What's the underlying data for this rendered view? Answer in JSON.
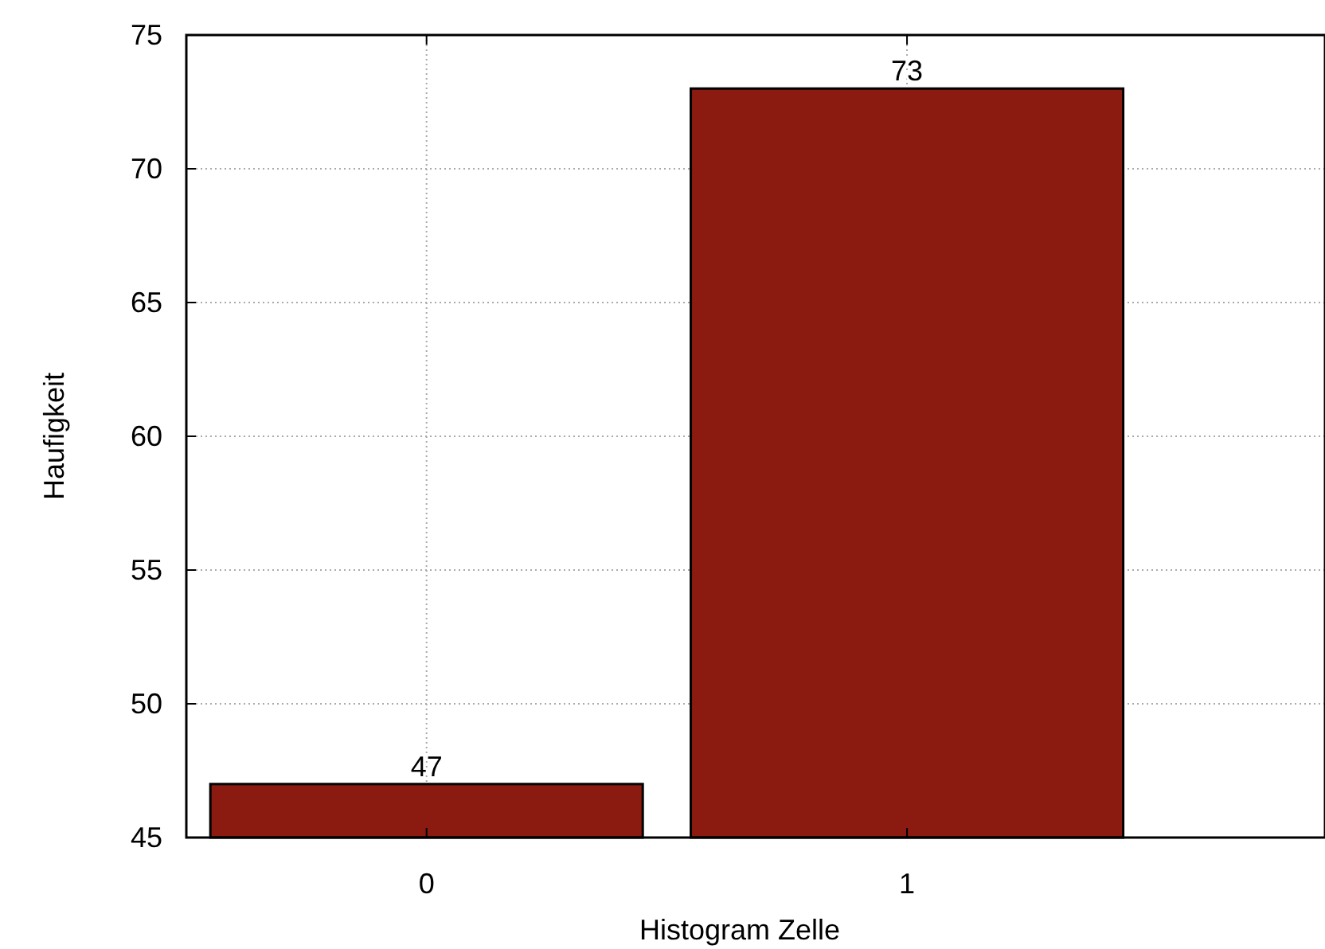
{
  "chart_data": {
    "type": "bar",
    "xlabel": "Histogram Zelle",
    "ylabel": "Haufigkeit",
    "x": [
      0,
      1
    ],
    "values": [
      47,
      73
    ],
    "color": "#8b1a10",
    "xlim": [
      -0.5,
      1.87
    ],
    "xticks": [
      0,
      1
    ],
    "ylim": [
      45,
      75
    ],
    "yticks": [
      45,
      50,
      55,
      60,
      65,
      70,
      75
    ],
    "grid": true,
    "data_labels": true
  }
}
